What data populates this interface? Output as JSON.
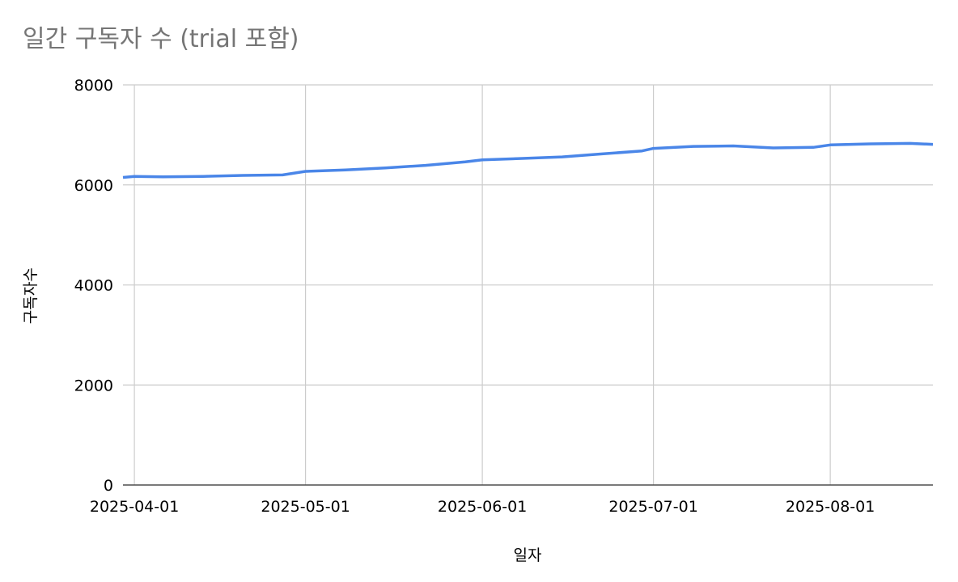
{
  "chart_data": {
    "type": "line",
    "title": "일간 구독자 수 (trial 포함)",
    "x_label": "일자",
    "y_label": "구독자수",
    "x": [
      "2025-03-30",
      "2025-04-01",
      "2025-04-06",
      "2025-04-13",
      "2025-04-20",
      "2025-04-27",
      "2025-05-01",
      "2025-05-08",
      "2025-05-15",
      "2025-05-22",
      "2025-05-29",
      "2025-06-01",
      "2025-06-08",
      "2025-06-15",
      "2025-06-22",
      "2025-06-29",
      "2025-07-01",
      "2025-07-08",
      "2025-07-15",
      "2025-07-22",
      "2025-07-29",
      "2025-08-01",
      "2025-08-08",
      "2025-08-15",
      "2025-08-19"
    ],
    "series": [
      {
        "name": "구독자수",
        "color": "#4a86e8",
        "values": [
          6150,
          6170,
          6160,
          6170,
          6190,
          6200,
          6270,
          6300,
          6340,
          6390,
          6460,
          6500,
          6530,
          6560,
          6620,
          6680,
          6730,
          6770,
          6780,
          6740,
          6750,
          6800,
          6820,
          6830,
          6810
        ]
      }
    ],
    "xlim": [
      "2025-03-30",
      "2025-08-19"
    ],
    "xticks": [
      "2025-04-01",
      "2025-05-01",
      "2025-06-01",
      "2025-07-01",
      "2025-08-01"
    ],
    "ylim": [
      0,
      8000
    ],
    "yticks": [
      0,
      2000,
      4000,
      6000,
      8000
    ],
    "grid": true
  }
}
